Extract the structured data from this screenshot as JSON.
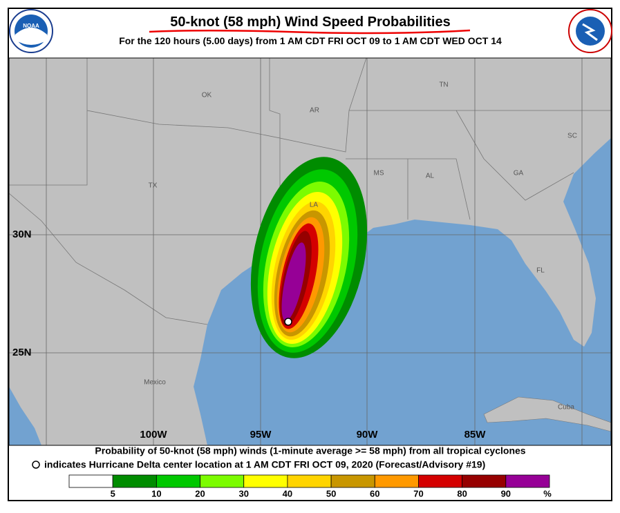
{
  "header": {
    "title": "50-knot (58 mph) Wind Speed Probabilities",
    "subtitle": "For the 120 hours (5.00 days) from 1 AM CDT FRI OCT 09 to 1 AM CDT WED OCT 14"
  },
  "map": {
    "regions": [
      "OK",
      "AR",
      "TN",
      "MS",
      "AL",
      "GA",
      "SC",
      "TX",
      "LA",
      "FL",
      "Mexico",
      "Cuba"
    ],
    "latitudes": [
      "30N",
      "25N"
    ],
    "longitudes": [
      "100W",
      "95W",
      "90W",
      "85W"
    ]
  },
  "footer": {
    "line1": "Probability of 50-knot (58 mph) winds (1-minute average >= 58 mph) from all tropical cyclones",
    "line2": "indicates Hurricane Delta center location at 1 AM CDT FRI OCT 09, 2020 (Forecast/Advisory #19)"
  },
  "legend": {
    "colors": [
      "#ffffff",
      "#008c00",
      "#00c800",
      "#7cfc00",
      "#ffff00",
      "#ffd400",
      "#c89600",
      "#ff9900",
      "#d40000",
      "#960000",
      "#960096"
    ],
    "labels": [
      5,
      10,
      20,
      30,
      40,
      50,
      60,
      70,
      80,
      90
    ],
    "unit": "%"
  }
}
